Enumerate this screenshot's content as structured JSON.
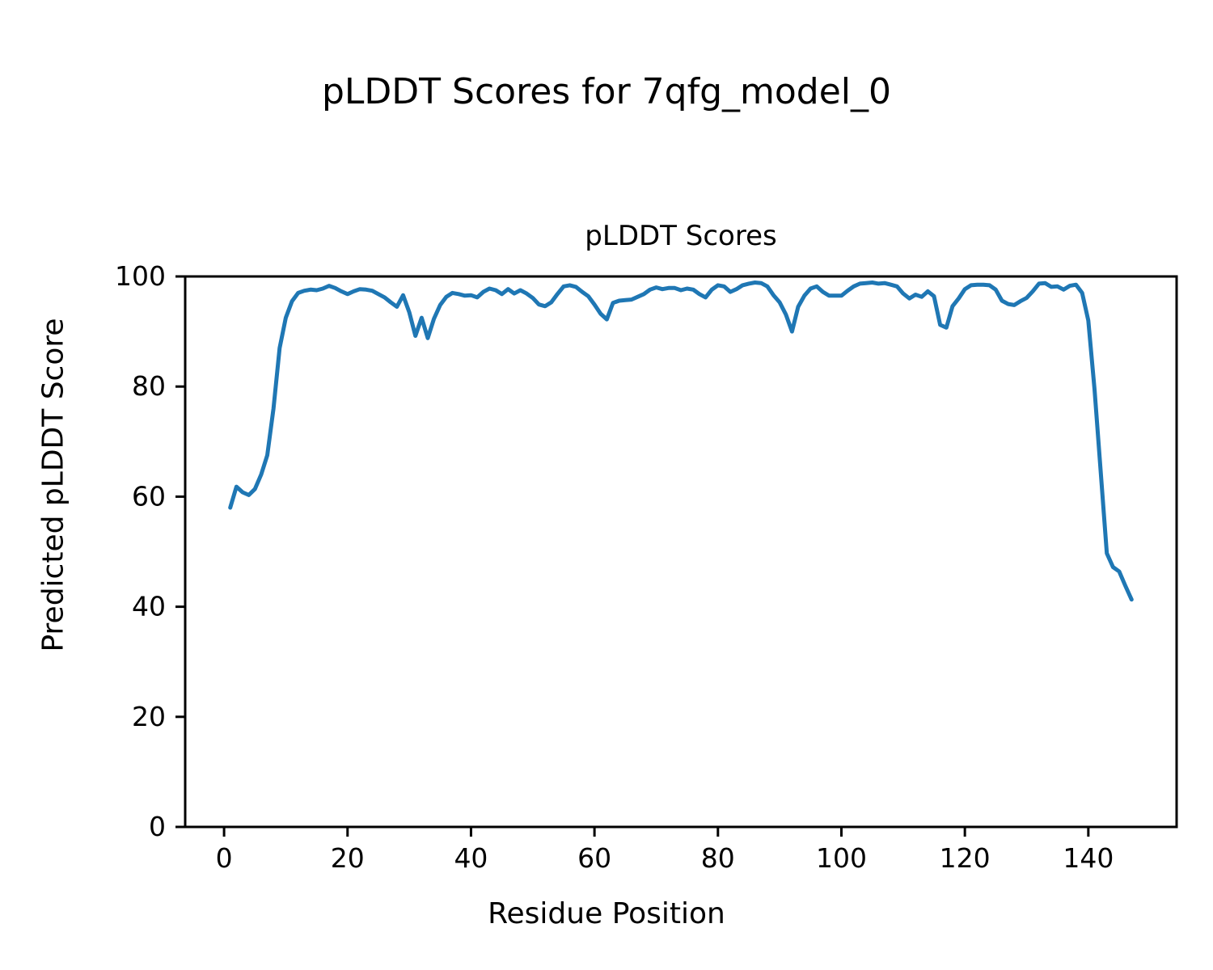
{
  "figure": {
    "suptitle": "pLDDT Scores for 7qfg_model_0"
  },
  "chart_data": {
    "type": "line",
    "title": "pLDDT Scores",
    "xlabel": "Residue Position",
    "ylabel": "Predicted pLDDT Score",
    "grid": false,
    "legend_position": "none",
    "line_color": "#1f77b4",
    "axis_color": "#000000",
    "xlim": [
      -6.3,
      154.3
    ],
    "ylim": [
      0,
      100
    ],
    "x_tick_values": [
      0,
      20,
      40,
      60,
      80,
      100,
      120,
      140
    ],
    "x_tick_labels": [
      "0",
      "20",
      "40",
      "60",
      "80",
      "100",
      "120",
      "140"
    ],
    "y_tick_values": [
      0,
      20,
      40,
      60,
      80,
      100
    ],
    "y_tick_labels": [
      "0",
      "20",
      "40",
      "60",
      "80",
      "100"
    ],
    "series": [
      {
        "name": "pLDDT",
        "x": [
          1,
          2,
          3,
          4,
          5,
          6,
          7,
          8,
          9,
          10,
          11,
          12,
          13,
          14,
          15,
          16,
          17,
          18,
          19,
          20,
          21,
          22,
          23,
          24,
          25,
          26,
          27,
          28,
          29,
          30,
          31,
          32,
          33,
          34,
          35,
          36,
          37,
          38,
          39,
          40,
          41,
          42,
          43,
          44,
          45,
          46,
          47,
          48,
          49,
          50,
          51,
          52,
          53,
          54,
          55,
          56,
          57,
          58,
          59,
          60,
          61,
          62,
          63,
          64,
          65,
          66,
          67,
          68,
          69,
          70,
          71,
          72,
          73,
          74,
          75,
          76,
          77,
          78,
          79,
          80,
          81,
          82,
          83,
          84,
          85,
          86,
          87,
          88,
          89,
          90,
          91,
          92,
          93,
          94,
          95,
          96,
          97,
          98,
          99,
          100,
          101,
          102,
          103,
          104,
          105,
          106,
          107,
          108,
          109,
          110,
          111,
          112,
          113,
          114,
          115,
          116,
          117,
          118,
          119,
          120,
          121,
          122,
          123,
          124,
          125,
          126,
          127,
          128,
          129,
          130,
          131,
          132,
          133,
          134,
          135,
          136,
          137,
          138,
          139,
          140,
          141,
          142,
          143,
          144,
          145,
          146,
          147
        ],
        "y": [
          58.0,
          61.8,
          60.8,
          60.3,
          61.4,
          64.0,
          67.5,
          76.0,
          87.0,
          92.5,
          95.5,
          97.0,
          97.4,
          97.6,
          97.5,
          97.8,
          98.3,
          97.9,
          97.3,
          96.8,
          97.3,
          97.7,
          97.6,
          97.4,
          96.8,
          96.2,
          95.3,
          94.5,
          96.6,
          93.5,
          89.2,
          92.5,
          88.8,
          92.3,
          94.8,
          96.3,
          97.0,
          96.8,
          96.5,
          96.6,
          96.2,
          97.2,
          97.8,
          97.5,
          96.8,
          97.7,
          96.9,
          97.5,
          96.9,
          96.1,
          94.9,
          94.6,
          95.3,
          96.8,
          98.2,
          98.4,
          98.1,
          97.2,
          96.4,
          94.9,
          93.2,
          92.2,
          95.2,
          95.6,
          95.7,
          95.8,
          96.3,
          96.8,
          97.6,
          98.0,
          97.7,
          97.9,
          97.9,
          97.5,
          97.8,
          97.6,
          96.8,
          96.2,
          97.6,
          98.4,
          98.2,
          97.2,
          97.7,
          98.4,
          98.7,
          98.9,
          98.8,
          98.2,
          96.6,
          95.3,
          93.1,
          90.0,
          94.5,
          96.5,
          97.8,
          98.2,
          97.2,
          96.5,
          96.5,
          96.5,
          97.4,
          98.2,
          98.7,
          98.8,
          98.9,
          98.7,
          98.8,
          98.5,
          98.2,
          96.9,
          96.0,
          96.7,
          96.3,
          97.3,
          96.4,
          91.2,
          90.7,
          94.6,
          96.0,
          97.7,
          98.4,
          98.5,
          98.5,
          98.4,
          97.6,
          95.6,
          95.0,
          94.8,
          95.5,
          96.1,
          97.3,
          98.7,
          98.8,
          98.1,
          98.2,
          97.6,
          98.3,
          98.5,
          97.0,
          92.0,
          79.5,
          64.6,
          49.7,
          47.2,
          46.4,
          43.8,
          41.3
        ]
      }
    ]
  }
}
